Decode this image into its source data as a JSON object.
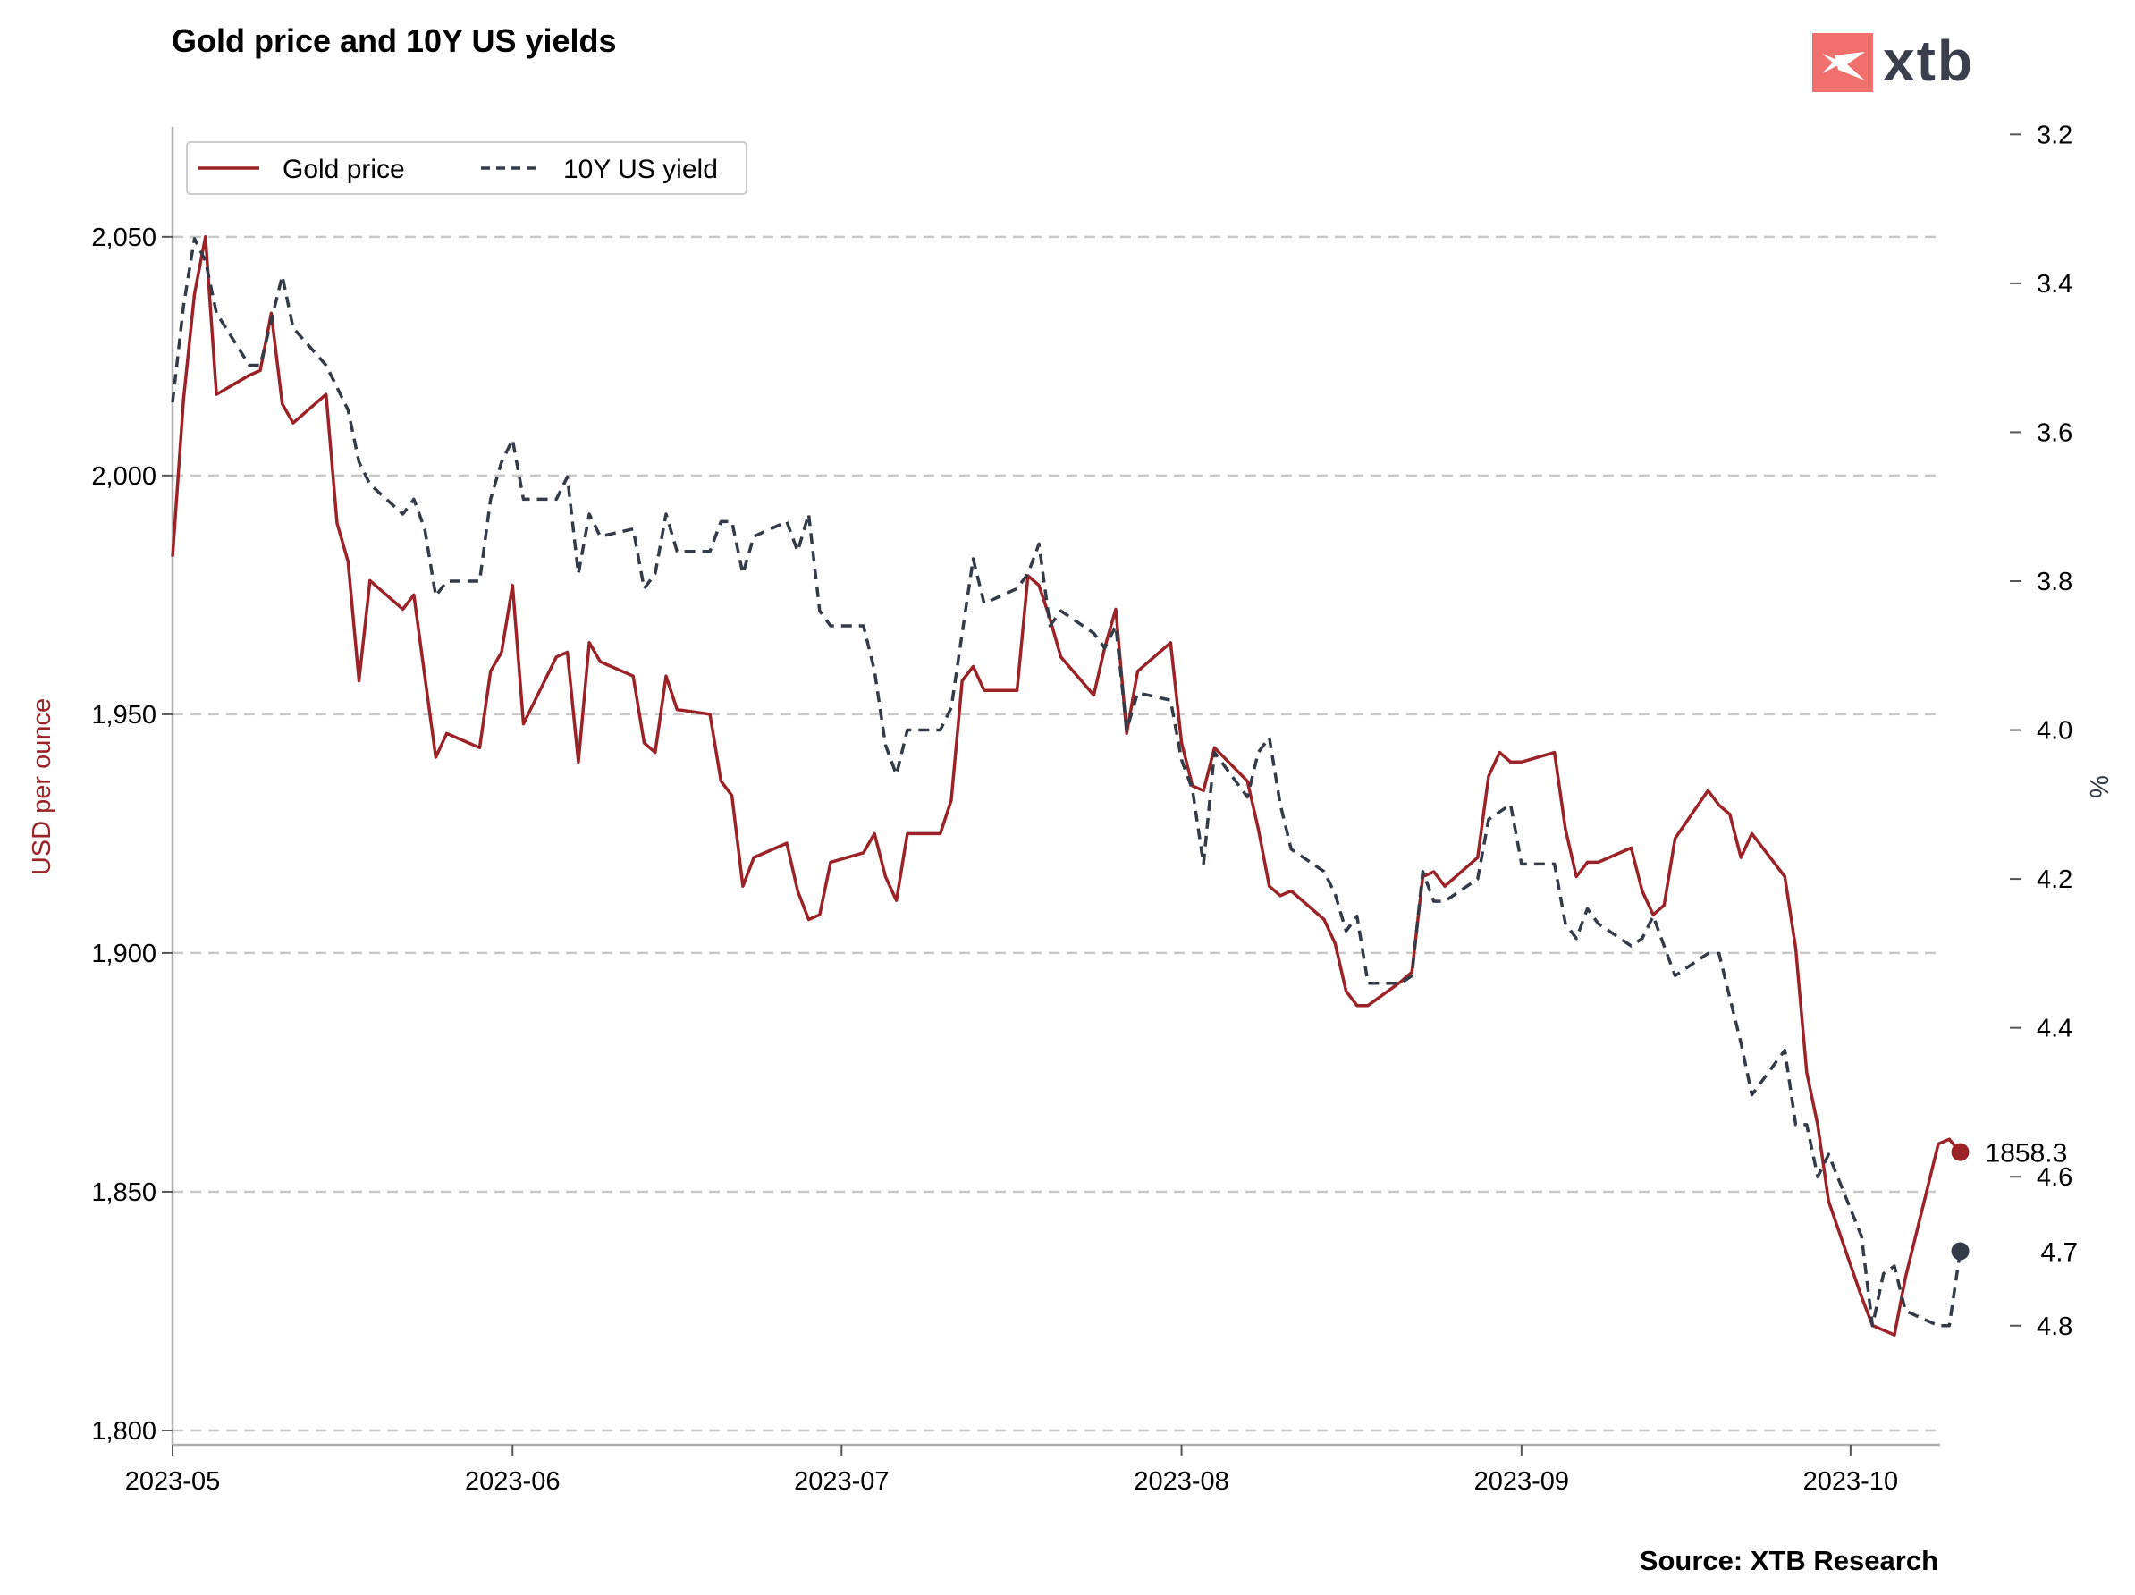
{
  "chart_data": {
    "type": "line",
    "title": "Gold price and 10Y US yields",
    "source": "Source: XTB Research",
    "logo": "xtb",
    "colors": {
      "gold": "#9b2226",
      "yield": "#333a48",
      "grid": "#c8c8c8",
      "logo_box": "#f0706e"
    },
    "x_ticks": [
      "2023-05",
      "2023-06",
      "2023-07",
      "2023-08",
      "2023-09",
      "2023-10"
    ],
    "x_range": [
      "2023-05-01",
      "2023-10-09"
    ],
    "y_left": {
      "label": "USD per ounce",
      "range": [
        1797,
        2073
      ],
      "ticks": [
        1800,
        1850,
        1900,
        1950,
        2000,
        2050
      ],
      "tick_labels": [
        "1,800",
        "1,850",
        "1,900",
        "1,950",
        "2,000",
        "2,050"
      ]
    },
    "y_right": {
      "label": "%",
      "inverted": true,
      "range": [
        3.19,
        4.96
      ],
      "ticks": [
        3.2,
        3.4,
        3.6,
        3.8,
        4.0,
        4.2,
        4.4,
        4.6,
        4.8
      ],
      "tick_labels": [
        "3.2",
        "3.4",
        "3.6",
        "3.8",
        "4.0",
        "4.2",
        "4.4",
        "4.6",
        "4.8"
      ]
    },
    "grid": "horizontal-dashed",
    "legend_position": "top-left",
    "series": [
      {
        "name": "Gold price",
        "axis": "left",
        "style": "solid",
        "end_label": "1858.3",
        "points": [
          [
            "2023-05-01",
            1983
          ],
          [
            "2023-05-02",
            2016
          ],
          [
            "2023-05-03",
            2038
          ],
          [
            "2023-05-04",
            2050
          ],
          [
            "2023-05-05",
            2017
          ],
          [
            "2023-05-08",
            2021
          ],
          [
            "2023-05-09",
            2022
          ],
          [
            "2023-05-10",
            2034
          ],
          [
            "2023-05-11",
            2015
          ],
          [
            "2023-05-12",
            2011
          ],
          [
            "2023-05-15",
            2017
          ],
          [
            "2023-05-16",
            1990
          ],
          [
            "2023-05-17",
            1982
          ],
          [
            "2023-05-18",
            1957
          ],
          [
            "2023-05-19",
            1978
          ],
          [
            "2023-05-22",
            1972
          ],
          [
            "2023-05-23",
            1975
          ],
          [
            "2023-05-24",
            1958
          ],
          [
            "2023-05-25",
            1941
          ],
          [
            "2023-05-26",
            1946
          ],
          [
            "2023-05-29",
            1943
          ],
          [
            "2023-05-30",
            1959
          ],
          [
            "2023-05-31",
            1963
          ],
          [
            "2023-06-01",
            1977
          ],
          [
            "2023-06-02",
            1948
          ],
          [
            "2023-06-05",
            1962
          ],
          [
            "2023-06-06",
            1963
          ],
          [
            "2023-06-07",
            1940
          ],
          [
            "2023-06-08",
            1965
          ],
          [
            "2023-06-09",
            1961
          ],
          [
            "2023-06-12",
            1958
          ],
          [
            "2023-06-13",
            1944
          ],
          [
            "2023-06-14",
            1942
          ],
          [
            "2023-06-15",
            1958
          ],
          [
            "2023-06-16",
            1951
          ],
          [
            "2023-06-19",
            1950
          ],
          [
            "2023-06-20",
            1936
          ],
          [
            "2023-06-21",
            1933
          ],
          [
            "2023-06-22",
            1914
          ],
          [
            "2023-06-23",
            1920
          ],
          [
            "2023-06-26",
            1923
          ],
          [
            "2023-06-27",
            1913
          ],
          [
            "2023-06-28",
            1907
          ],
          [
            "2023-06-29",
            1908
          ],
          [
            "2023-06-30",
            1919
          ],
          [
            "2023-07-03",
            1921
          ],
          [
            "2023-07-04",
            1925
          ],
          [
            "2023-07-05",
            1916
          ],
          [
            "2023-07-06",
            1911
          ],
          [
            "2023-07-07",
            1925
          ],
          [
            "2023-07-10",
            1925
          ],
          [
            "2023-07-11",
            1932
          ],
          [
            "2023-07-12",
            1957
          ],
          [
            "2023-07-13",
            1960
          ],
          [
            "2023-07-14",
            1955
          ],
          [
            "2023-07-17",
            1955
          ],
          [
            "2023-07-18",
            1979
          ],
          [
            "2023-07-19",
            1977
          ],
          [
            "2023-07-20",
            1970
          ],
          [
            "2023-07-21",
            1962
          ],
          [
            "2023-07-24",
            1954
          ],
          [
            "2023-07-25",
            1964
          ],
          [
            "2023-07-26",
            1972
          ],
          [
            "2023-07-27",
            1946
          ],
          [
            "2023-07-28",
            1959
          ],
          [
            "2023-07-31",
            1965
          ],
          [
            "2023-08-01",
            1944
          ],
          [
            "2023-08-02",
            1935
          ],
          [
            "2023-08-03",
            1934
          ],
          [
            "2023-08-04",
            1943
          ],
          [
            "2023-08-07",
            1936
          ],
          [
            "2023-08-08",
            1926
          ],
          [
            "2023-08-09",
            1914
          ],
          [
            "2023-08-10",
            1912
          ],
          [
            "2023-08-11",
            1913
          ],
          [
            "2023-08-14",
            1907
          ],
          [
            "2023-08-15",
            1902
          ],
          [
            "2023-08-16",
            1892
          ],
          [
            "2023-08-17",
            1889
          ],
          [
            "2023-08-18",
            1889
          ],
          [
            "2023-08-21",
            1894
          ],
          [
            "2023-08-22",
            1896
          ],
          [
            "2023-08-23",
            1916
          ],
          [
            "2023-08-24",
            1917
          ],
          [
            "2023-08-25",
            1914
          ],
          [
            "2023-08-28",
            1920
          ],
          [
            "2023-08-29",
            1937
          ],
          [
            "2023-08-30",
            1942
          ],
          [
            "2023-08-31",
            1940
          ],
          [
            "2023-09-01",
            1940
          ],
          [
            "2023-09-04",
            1942
          ],
          [
            "2023-09-05",
            1926
          ],
          [
            "2023-09-06",
            1916
          ],
          [
            "2023-09-07",
            1919
          ],
          [
            "2023-09-08",
            1919
          ],
          [
            "2023-09-11",
            1922
          ],
          [
            "2023-09-12",
            1913
          ],
          [
            "2023-09-13",
            1908
          ],
          [
            "2023-09-14",
            1910
          ],
          [
            "2023-09-15",
            1924
          ],
          [
            "2023-09-18",
            1934
          ],
          [
            "2023-09-19",
            1931
          ],
          [
            "2023-09-20",
            1929
          ],
          [
            "2023-09-21",
            1920
          ],
          [
            "2023-09-22",
            1925
          ],
          [
            "2023-09-25",
            1916
          ],
          [
            "2023-09-26",
            1901
          ],
          [
            "2023-09-27",
            1875
          ],
          [
            "2023-09-28",
            1864
          ],
          [
            "2023-09-29",
            1848
          ],
          [
            "2023-10-02",
            1828
          ],
          [
            "2023-10-03",
            1822
          ],
          [
            "2023-10-04",
            1821
          ],
          [
            "2023-10-05",
            1820
          ],
          [
            "2023-10-06",
            1832
          ],
          [
            "2023-10-09",
            1860
          ],
          [
            "2023-10-10",
            1861
          ],
          [
            "2023-10-11",
            1858.3
          ]
        ]
      },
      {
        "name": "10Y US yield",
        "axis": "right",
        "style": "dashed",
        "end_label": "4.7",
        "points": [
          [
            "2023-05-01",
            3.56
          ],
          [
            "2023-05-02",
            3.43
          ],
          [
            "2023-05-03",
            3.34
          ],
          [
            "2023-05-04",
            3.37
          ],
          [
            "2023-05-05",
            3.44
          ],
          [
            "2023-05-08",
            3.51
          ],
          [
            "2023-05-09",
            3.51
          ],
          [
            "2023-05-10",
            3.45
          ],
          [
            "2023-05-11",
            3.39
          ],
          [
            "2023-05-12",
            3.46
          ],
          [
            "2023-05-15",
            3.51
          ],
          [
            "2023-05-16",
            3.54
          ],
          [
            "2023-05-17",
            3.57
          ],
          [
            "2023-05-18",
            3.64
          ],
          [
            "2023-05-19",
            3.67
          ],
          [
            "2023-05-22",
            3.71
          ],
          [
            "2023-05-23",
            3.69
          ],
          [
            "2023-05-24",
            3.73
          ],
          [
            "2023-05-25",
            3.82
          ],
          [
            "2023-05-26",
            3.8
          ],
          [
            "2023-05-29",
            3.8
          ],
          [
            "2023-05-30",
            3.69
          ],
          [
            "2023-05-31",
            3.64
          ],
          [
            "2023-06-01",
            3.61
          ],
          [
            "2023-06-02",
            3.69
          ],
          [
            "2023-06-05",
            3.69
          ],
          [
            "2023-06-06",
            3.66
          ],
          [
            "2023-06-07",
            3.79
          ],
          [
            "2023-06-08",
            3.71
          ],
          [
            "2023-06-09",
            3.74
          ],
          [
            "2023-06-12",
            3.73
          ],
          [
            "2023-06-13",
            3.81
          ],
          [
            "2023-06-14",
            3.79
          ],
          [
            "2023-06-15",
            3.71
          ],
          [
            "2023-06-16",
            3.76
          ],
          [
            "2023-06-19",
            3.76
          ],
          [
            "2023-06-20",
            3.72
          ],
          [
            "2023-06-21",
            3.72
          ],
          [
            "2023-06-22",
            3.79
          ],
          [
            "2023-06-23",
            3.74
          ],
          [
            "2023-06-26",
            3.72
          ],
          [
            "2023-06-27",
            3.76
          ],
          [
            "2023-06-28",
            3.71
          ],
          [
            "2023-06-29",
            3.84
          ],
          [
            "2023-06-30",
            3.86
          ],
          [
            "2023-07-03",
            3.86
          ],
          [
            "2023-07-04",
            3.92
          ],
          [
            "2023-07-05",
            4.02
          ],
          [
            "2023-07-06",
            4.06
          ],
          [
            "2023-07-07",
            4.0
          ],
          [
            "2023-07-10",
            4.0
          ],
          [
            "2023-07-11",
            3.97
          ],
          [
            "2023-07-12",
            3.87
          ],
          [
            "2023-07-13",
            3.77
          ],
          [
            "2023-07-14",
            3.83
          ],
          [
            "2023-07-17",
            3.81
          ],
          [
            "2023-07-18",
            3.79
          ],
          [
            "2023-07-19",
            3.75
          ],
          [
            "2023-07-20",
            3.86
          ],
          [
            "2023-07-21",
            3.84
          ],
          [
            "2023-07-24",
            3.87
          ],
          [
            "2023-07-25",
            3.89
          ],
          [
            "2023-07-26",
            3.86
          ],
          [
            "2023-07-27",
            4.0
          ],
          [
            "2023-07-28",
            3.95
          ],
          [
            "2023-07-31",
            3.96
          ],
          [
            "2023-08-01",
            4.04
          ],
          [
            "2023-08-02",
            4.08
          ],
          [
            "2023-08-03",
            4.18
          ],
          [
            "2023-08-04",
            4.03
          ],
          [
            "2023-08-07",
            4.09
          ],
          [
            "2023-08-08",
            4.03
          ],
          [
            "2023-08-09",
            4.01
          ],
          [
            "2023-08-10",
            4.1
          ],
          [
            "2023-08-11",
            4.16
          ],
          [
            "2023-08-14",
            4.19
          ],
          [
            "2023-08-15",
            4.22
          ],
          [
            "2023-08-16",
            4.27
          ],
          [
            "2023-08-17",
            4.25
          ],
          [
            "2023-08-18",
            4.34
          ],
          [
            "2023-08-21",
            4.34
          ],
          [
            "2023-08-22",
            4.33
          ],
          [
            "2023-08-23",
            4.19
          ],
          [
            "2023-08-24",
            4.23
          ],
          [
            "2023-08-25",
            4.23
          ],
          [
            "2023-08-28",
            4.2
          ],
          [
            "2023-08-29",
            4.12
          ],
          [
            "2023-08-30",
            4.11
          ],
          [
            "2023-08-31",
            4.1
          ],
          [
            "2023-09-01",
            4.18
          ],
          [
            "2023-09-04",
            4.18
          ],
          [
            "2023-09-05",
            4.26
          ],
          [
            "2023-09-06",
            4.28
          ],
          [
            "2023-09-07",
            4.24
          ],
          [
            "2023-09-08",
            4.26
          ],
          [
            "2023-09-11",
            4.29
          ],
          [
            "2023-09-12",
            4.28
          ],
          [
            "2023-09-13",
            4.25
          ],
          [
            "2023-09-14",
            4.29
          ],
          [
            "2023-09-15",
            4.33
          ],
          [
            "2023-09-18",
            4.3
          ],
          [
            "2023-09-19",
            4.3
          ],
          [
            "2023-09-20",
            4.36
          ],
          [
            "2023-09-21",
            4.42
          ],
          [
            "2023-09-22",
            4.49
          ],
          [
            "2023-09-25",
            4.43
          ],
          [
            "2023-09-26",
            4.53
          ],
          [
            "2023-09-27",
            4.53
          ],
          [
            "2023-09-28",
            4.6
          ],
          [
            "2023-09-29",
            4.57
          ],
          [
            "2023-10-02",
            4.68
          ],
          [
            "2023-10-03",
            4.8
          ],
          [
            "2023-10-04",
            4.73
          ],
          [
            "2023-10-05",
            4.72
          ],
          [
            "2023-10-06",
            4.78
          ],
          [
            "2023-10-09",
            4.8
          ],
          [
            "2023-10-10",
            4.8
          ],
          [
            "2023-10-11",
            4.7
          ]
        ]
      }
    ]
  }
}
